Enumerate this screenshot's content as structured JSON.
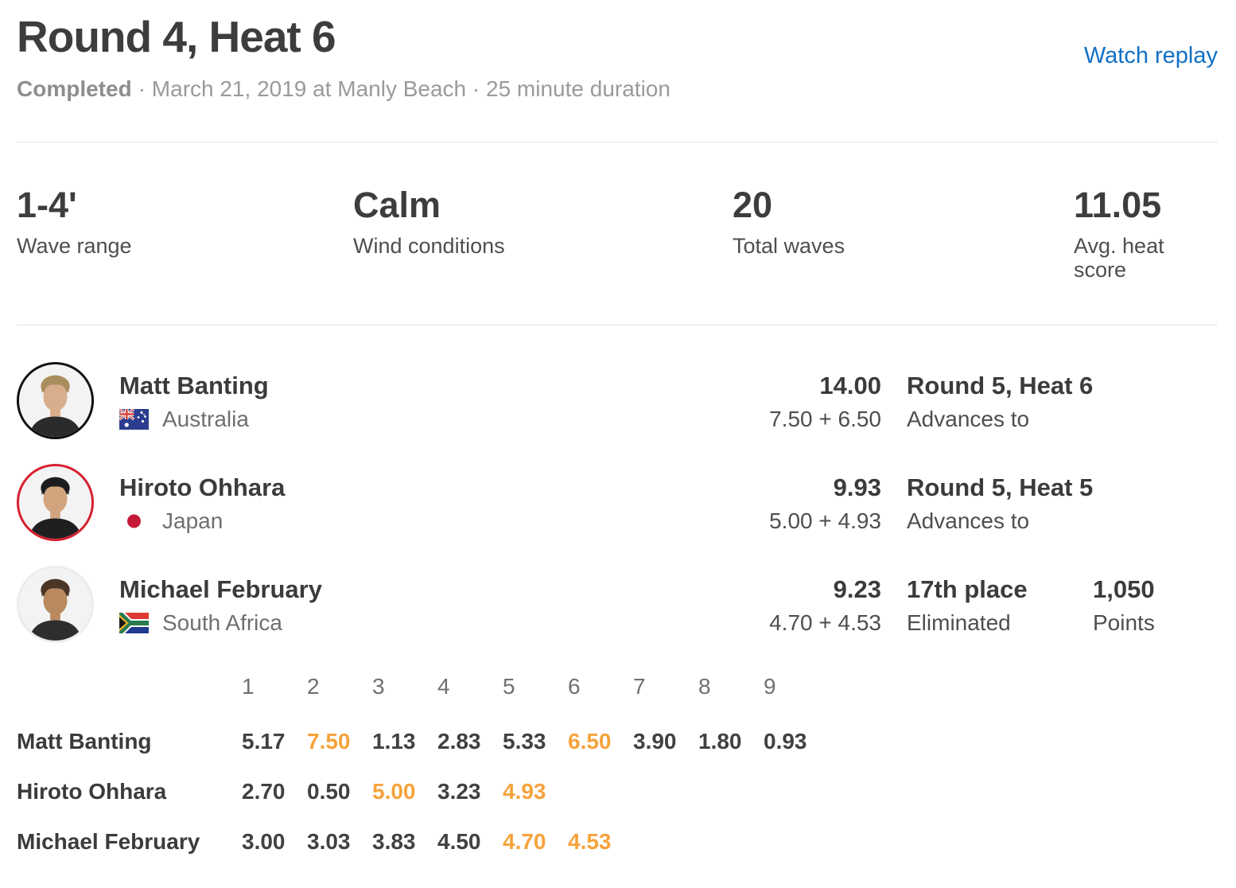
{
  "colors": {
    "accent_orange": "#F6A33B",
    "link_blue": "#1170C4",
    "text_dark": "#3B3B3B",
    "text_mid": "#4E4E4E",
    "text_gray": "#9A9A9A",
    "divider": "#E4E4E4"
  },
  "header": {
    "title": "Round 4, Heat 6",
    "watch_replay_label": "Watch replay",
    "status": "Completed",
    "meta_rest": "· March 21, 2019 at Manly Beach · 25 minute duration"
  },
  "stats": [
    {
      "value": "1-4'",
      "label": "Wave range"
    },
    {
      "value": "Calm",
      "label": "Wind conditions"
    },
    {
      "value": "20",
      "label": "Total waves"
    },
    {
      "value": "11.05",
      "label": "Avg. heat score"
    }
  ],
  "surfers": [
    {
      "name": "Matt Banting",
      "country": "Australia",
      "flag": "au",
      "ring_color": "#111111",
      "hair_color": "#a98d5f",
      "skin_color": "#d8ae8c",
      "shirt_color": "#2b2b2b",
      "total": "14.00",
      "breakdown": "7.50 + 6.50",
      "result_title": "Round 5, Heat 6",
      "result_sub": "Advances to",
      "points_value": "",
      "points_label": ""
    },
    {
      "name": "Hiroto Ohhara",
      "country": "Japan",
      "flag": "jp",
      "ring_color": "#d7202f",
      "hair_color": "#1d1d1f",
      "skin_color": "#d3a57e",
      "shirt_color": "#1f1f21",
      "total": "9.93",
      "breakdown": "5.00 + 4.93",
      "result_title": "Round 5, Heat 5",
      "result_sub": "Advances to",
      "points_value": "",
      "points_label": ""
    },
    {
      "name": "Michael February",
      "country": "South Africa",
      "flag": "za",
      "ring_color": "#ececec",
      "hair_color": "#4a3526",
      "skin_color": "#b98a5f",
      "shirt_color": "#2e2e2e",
      "total": "9.23",
      "breakdown": "4.70 + 4.53",
      "result_title": "17th place",
      "result_sub": "Eliminated",
      "points_value": "1,050",
      "points_label": "Points"
    }
  ],
  "wave_table": {
    "headers": [
      "1",
      "2",
      "3",
      "4",
      "5",
      "6",
      "7",
      "8",
      "9"
    ],
    "rows": [
      {
        "name": "Matt Banting",
        "scores": [
          "5.17",
          "7.50",
          "1.13",
          "2.83",
          "5.33",
          "6.50",
          "3.90",
          "1.80",
          "0.93"
        ],
        "highlight": [
          1,
          5
        ]
      },
      {
        "name": "Hiroto Ohhara",
        "scores": [
          "2.70",
          "0.50",
          "5.00",
          "3.23",
          "4.93"
        ],
        "highlight": [
          2,
          4
        ]
      },
      {
        "name": "Michael February",
        "scores": [
          "3.00",
          "3.03",
          "3.83",
          "4.50",
          "4.70",
          "4.53"
        ],
        "highlight": [
          4,
          5
        ]
      }
    ]
  }
}
